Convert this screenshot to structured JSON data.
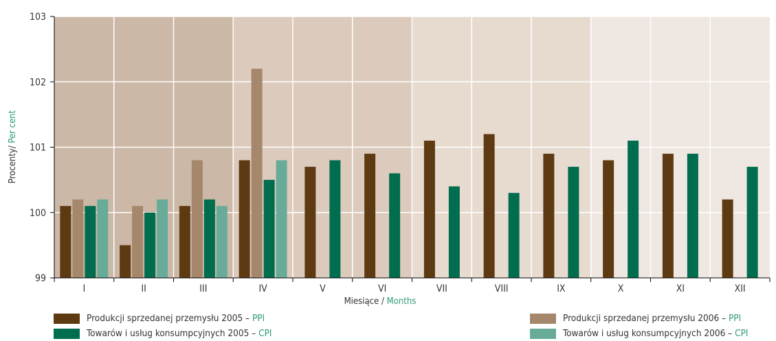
{
  "chart_data": {
    "type": "bar",
    "categories": [
      "I",
      "II",
      "III",
      "IV",
      "V",
      "VI",
      "VII",
      "VIII",
      "IX",
      "X",
      "XI",
      "XII"
    ],
    "series": [
      {
        "name": "Produkcji sprzedanej przemysłu 2005",
        "tag": "PPI",
        "color": "#5e3a13",
        "values": [
          100.1,
          99.5,
          100.1,
          100.8,
          100.7,
          100.9,
          101.1,
          101.2,
          100.9,
          100.8,
          100.9,
          100.2
        ]
      },
      {
        "name": "Produkcji sprzedanej przemysłu 2006",
        "tag": "PPI",
        "color": "#a5876c",
        "values": [
          100.2,
          100.1,
          100.8,
          102.2,
          null,
          null,
          null,
          null,
          null,
          null,
          null,
          null
        ]
      },
      {
        "name": "Towarów i usług konsumpcyjnych 2005",
        "tag": "CPI",
        "color": "#006d4f",
        "values": [
          100.1,
          100.0,
          100.2,
          100.5,
          100.8,
          100.6,
          100.4,
          100.3,
          100.7,
          101.1,
          100.9,
          100.7
        ]
      },
      {
        "name": "Towarów i usług konsumpcyjnych 2006",
        "tag": "CPI",
        "color": "#69ab99",
        "values": [
          100.2,
          100.2,
          100.1,
          100.8,
          null,
          null,
          null,
          null,
          null,
          null,
          null,
          null
        ]
      }
    ],
    "ylim": [
      99,
      103
    ],
    "yticks": [
      "99",
      "100",
      "101",
      "102",
      "103"
    ],
    "ylabel_part1": "Procenty/",
    "ylabel_part2": "Per cent",
    "xlabel_part1": "Miesiące / ",
    "xlabel_part2": "Months",
    "legend_separator": " – ",
    "band_colors": [
      "#ccb8a6",
      "#dccbbd",
      "#e7dbd0",
      "#efe7e1"
    ],
    "grid": true,
    "legend_position": "bottom"
  }
}
